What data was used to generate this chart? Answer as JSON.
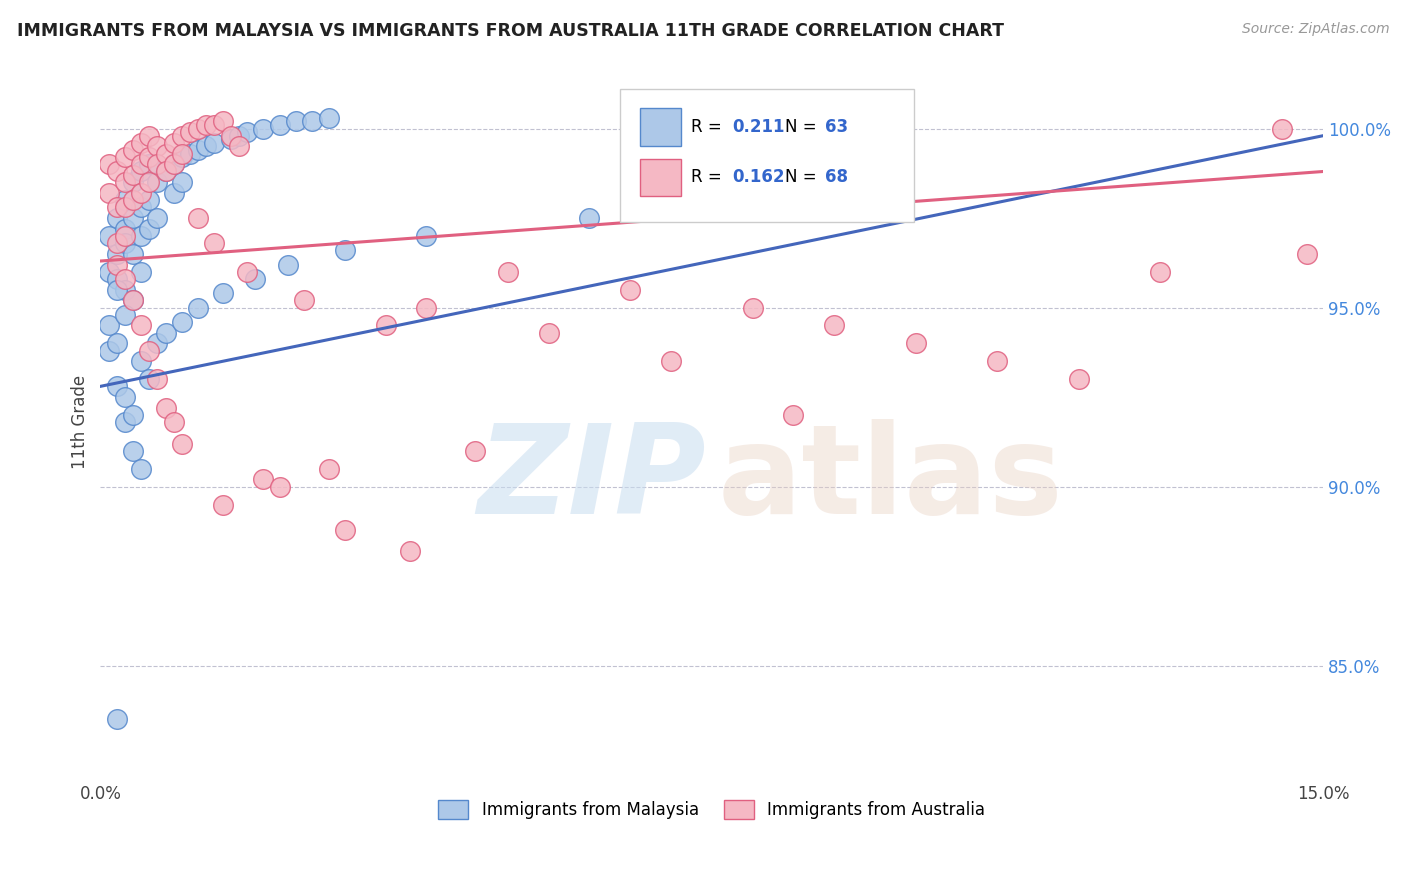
{
  "title": "IMMIGRANTS FROM MALAYSIA VS IMMIGRANTS FROM AUSTRALIA 11TH GRADE CORRELATION CHART",
  "source": "Source: ZipAtlas.com",
  "ylabel": "11th Grade",
  "xmin": 0.0,
  "xmax": 0.15,
  "ymin": 0.818,
  "ymax": 1.018,
  "yticks": [
    0.85,
    0.9,
    0.95,
    1.0
  ],
  "ytick_labels": [
    "85.0%",
    "90.0%",
    "95.0%",
    "100.0%"
  ],
  "xticks": [
    0.0,
    0.025,
    0.05,
    0.075,
    0.1,
    0.125,
    0.15
  ],
  "xtick_labels": [
    "0.0%",
    "",
    "",
    "",
    "",
    "",
    "15.0%"
  ],
  "legend_r1": "R = 0.211",
  "legend_n1": "N = 63",
  "legend_r2": "R = 0.162",
  "legend_n2": "N = 68",
  "malaysia_color": "#adc8e8",
  "malaysia_edge_color": "#5588cc",
  "australia_color": "#f5b8c4",
  "australia_edge_color": "#e06080",
  "malaysia_line_color": "#4466bb",
  "australia_line_color": "#e06080",
  "mal_line_x0": 0.0,
  "mal_line_x1": 0.15,
  "mal_line_y0": 0.928,
  "mal_line_y1": 0.998,
  "aus_line_x0": 0.0,
  "aus_line_x1": 0.15,
  "aus_line_y0": 0.963,
  "aus_line_y1": 0.988,
  "watermark_zip": "ZIP",
  "watermark_atlas": "atlas",
  "malaysia_pts_x": [
    0.001,
    0.001,
    0.002,
    0.002,
    0.002,
    0.003,
    0.003,
    0.003,
    0.003,
    0.004,
    0.004,
    0.004,
    0.004,
    0.005,
    0.005,
    0.005,
    0.005,
    0.006,
    0.006,
    0.006,
    0.007,
    0.007,
    0.008,
    0.009,
    0.009,
    0.01,
    0.01,
    0.011,
    0.012,
    0.013,
    0.014,
    0.016,
    0.017,
    0.018,
    0.02,
    0.022,
    0.024,
    0.026,
    0.028,
    0.001,
    0.001,
    0.002,
    0.002,
    0.003,
    0.003,
    0.004,
    0.004,
    0.005,
    0.002,
    0.003,
    0.005,
    0.006,
    0.007,
    0.008,
    0.01,
    0.012,
    0.015,
    0.019,
    0.023,
    0.03,
    0.04,
    0.06,
    0.002
  ],
  "malaysia_pts_y": [
    0.97,
    0.96,
    0.975,
    0.965,
    0.958,
    0.98,
    0.972,
    0.968,
    0.955,
    0.985,
    0.975,
    0.965,
    0.952,
    0.988,
    0.978,
    0.97,
    0.96,
    0.99,
    0.98,
    0.972,
    0.985,
    0.975,
    0.988,
    0.99,
    0.982,
    0.992,
    0.985,
    0.993,
    0.994,
    0.995,
    0.996,
    0.997,
    0.998,
    0.999,
    1.0,
    1.001,
    1.002,
    1.002,
    1.003,
    0.945,
    0.938,
    0.94,
    0.928,
    0.925,
    0.918,
    0.92,
    0.91,
    0.905,
    0.955,
    0.948,
    0.935,
    0.93,
    0.94,
    0.943,
    0.946,
    0.95,
    0.954,
    0.958,
    0.962,
    0.966,
    0.97,
    0.975,
    0.835
  ],
  "australia_pts_x": [
    0.001,
    0.001,
    0.002,
    0.002,
    0.002,
    0.003,
    0.003,
    0.003,
    0.003,
    0.004,
    0.004,
    0.004,
    0.005,
    0.005,
    0.005,
    0.006,
    0.006,
    0.006,
    0.007,
    0.007,
    0.008,
    0.008,
    0.009,
    0.009,
    0.01,
    0.01,
    0.011,
    0.012,
    0.013,
    0.014,
    0.015,
    0.016,
    0.017,
    0.002,
    0.003,
    0.004,
    0.005,
    0.006,
    0.007,
    0.008,
    0.009,
    0.01,
    0.012,
    0.014,
    0.018,
    0.025,
    0.035,
    0.05,
    0.065,
    0.08,
    0.09,
    0.1,
    0.11,
    0.12,
    0.145,
    0.148,
    0.04,
    0.055,
    0.07,
    0.085,
    0.046,
    0.028,
    0.02,
    0.022,
    0.015,
    0.03,
    0.038,
    0.13
  ],
  "australia_pts_y": [
    0.99,
    0.982,
    0.988,
    0.978,
    0.968,
    0.992,
    0.985,
    0.978,
    0.97,
    0.994,
    0.987,
    0.98,
    0.996,
    0.99,
    0.982,
    0.998,
    0.992,
    0.985,
    0.995,
    0.99,
    0.993,
    0.988,
    0.996,
    0.99,
    0.998,
    0.993,
    0.999,
    1.0,
    1.001,
    1.001,
    1.002,
    0.998,
    0.995,
    0.962,
    0.958,
    0.952,
    0.945,
    0.938,
    0.93,
    0.922,
    0.918,
    0.912,
    0.975,
    0.968,
    0.96,
    0.952,
    0.945,
    0.96,
    0.955,
    0.95,
    0.945,
    0.94,
    0.935,
    0.93,
    1.0,
    0.965,
    0.95,
    0.943,
    0.935,
    0.92,
    0.91,
    0.905,
    0.902,
    0.9,
    0.895,
    0.888,
    0.882,
    0.96
  ]
}
